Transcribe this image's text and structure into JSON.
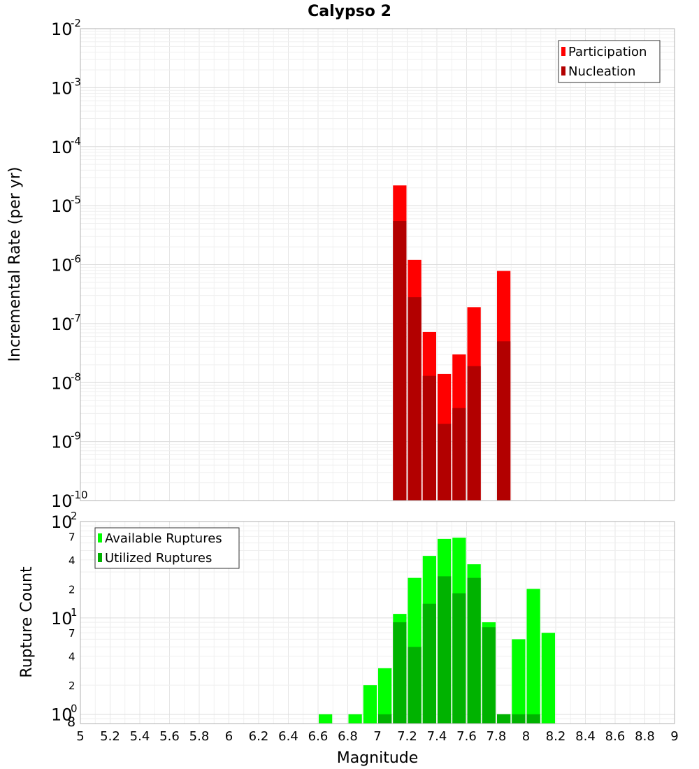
{
  "title": "Calypso 2",
  "chart_data": [
    {
      "type": "bar",
      "title": "Calypso 2",
      "ylabel": "Incremental Rate (per yr)",
      "xlabel": "",
      "y_scale": "log",
      "ylim": [
        1e-10,
        0.01
      ],
      "xlim": [
        5,
        9
      ],
      "bar_width": 0.1,
      "y_ticks": [
        {
          "base": "10",
          "exp": "-10",
          "value": 1e-10
        },
        {
          "base": "10",
          "exp": "-9",
          "value": 1e-09
        },
        {
          "base": "10",
          "exp": "-8",
          "value": 1e-08
        },
        {
          "base": "10",
          "exp": "-7",
          "value": 1e-07
        },
        {
          "base": "10",
          "exp": "-6",
          "value": 1e-06
        },
        {
          "base": "10",
          "exp": "-5",
          "value": 1e-05
        },
        {
          "base": "10",
          "exp": "-4",
          "value": 0.0001
        },
        {
          "base": "10",
          "exp": "-3",
          "value": 0.001
        },
        {
          "base": "10",
          "exp": "-2",
          "value": 0.01
        }
      ],
      "legend": {
        "placement": "top-right"
      },
      "series": [
        {
          "name": "Participation",
          "color": "#ff0000",
          "x": [
            7.15,
            7.25,
            7.35,
            7.45,
            7.55,
            7.65,
            7.85
          ],
          "values": [
            2.2e-05,
            1.2e-06,
            7.2e-08,
            1.4e-08,
            3e-08,
            1.9e-07,
            7.8e-07
          ]
        },
        {
          "name": "Nucleation",
          "color": "#b20000",
          "x": [
            7.15,
            7.25,
            7.35,
            7.45,
            7.55,
            7.65,
            7.85
          ],
          "values": [
            5.5e-06,
            2.8e-07,
            1.3e-08,
            2e-09,
            3.7e-09,
            1.9e-08,
            5e-08
          ]
        }
      ]
    },
    {
      "type": "bar",
      "title": "",
      "ylabel": "Rupture Count",
      "xlabel": "Magnitude",
      "y_scale": "log",
      "ylim": [
        0.8,
        100
      ],
      "xlim": [
        5,
        9
      ],
      "bar_width": 0.1,
      "x_ticks": [
        "5",
        "5.2",
        "5.4",
        "5.6",
        "5.8",
        "6",
        "6.2",
        "6.4",
        "6.6",
        "6.8",
        "7",
        "7.2",
        "7.4",
        "7.6",
        "7.8",
        "8",
        "8.2",
        "8.4",
        "8.6",
        "8.8",
        "9"
      ],
      "y_ticks": [
        {
          "base": "10",
          "exp": "0",
          "value": 1
        },
        {
          "base": "10",
          "exp": "1",
          "value": 10
        },
        {
          "base": "10",
          "exp": "2",
          "value": 100
        }
      ],
      "y_minor_ticks": [
        {
          "label": "8",
          "value": 0.8
        },
        {
          "label": "2",
          "value": 2
        },
        {
          "label": "4",
          "value": 4
        },
        {
          "label": "7",
          "value": 7
        },
        {
          "label": "2",
          "value": 20
        },
        {
          "label": "4",
          "value": 40
        },
        {
          "label": "7",
          "value": 70
        }
      ],
      "legend": {
        "placement": "top-left"
      },
      "series": [
        {
          "name": "Available Ruptures",
          "color": "#00ff00",
          "x": [
            6.65,
            6.85,
            6.95,
            7.05,
            7.15,
            7.25,
            7.35,
            7.45,
            7.55,
            7.65,
            7.75,
            7.85,
            7.95,
            8.05,
            8.15
          ],
          "values": [
            1,
            1,
            2,
            3,
            11,
            26,
            44,
            66,
            68,
            36,
            9,
            1,
            6,
            20,
            7
          ]
        },
        {
          "name": "Utilized Ruptures",
          "color": "#00b200",
          "x": [
            6.65,
            6.85,
            6.95,
            7.05,
            7.15,
            7.25,
            7.35,
            7.45,
            7.55,
            7.65,
            7.75,
            7.85,
            7.95,
            8.05,
            8.15
          ],
          "values": [
            0,
            0,
            0,
            1,
            9,
            5,
            14,
            27,
            18,
            26,
            8,
            1,
            1,
            1,
            0
          ]
        }
      ]
    }
  ]
}
